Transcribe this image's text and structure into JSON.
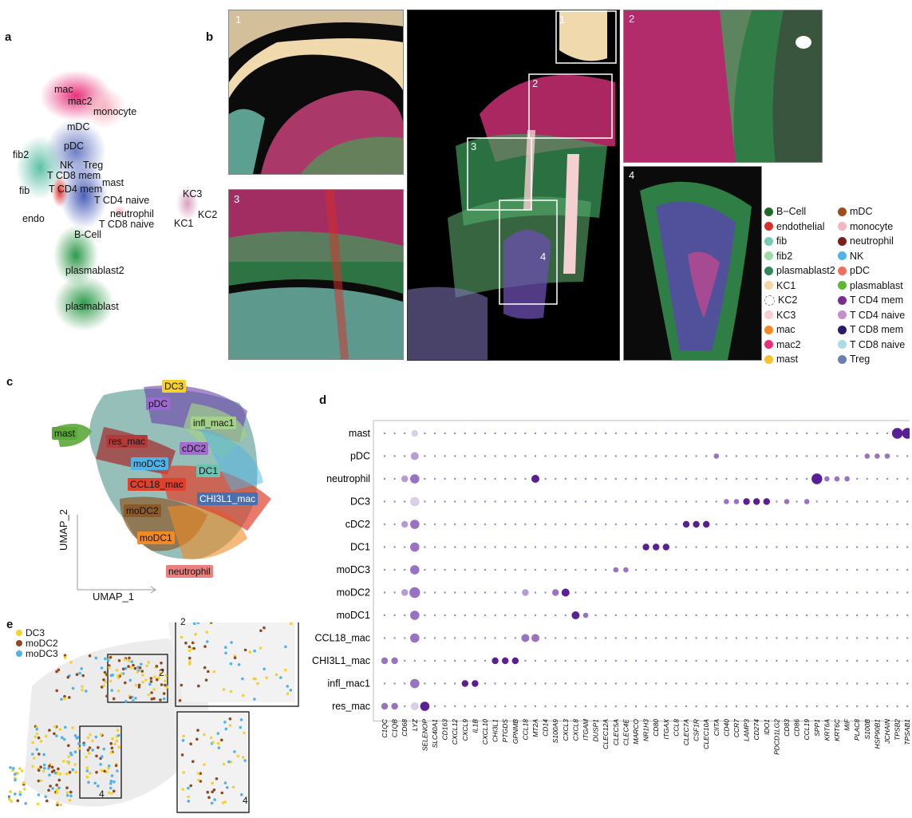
{
  "panels": {
    "a": {
      "label": "a",
      "cluster_labels": [
        "mac",
        "mac2",
        "monocyte",
        "mDC",
        "pDC",
        "fib2",
        "NK",
        "Treg",
        "T CD8 mem",
        "mast",
        "fib",
        "T CD4 mem",
        "T CD4 naive",
        "endo",
        "neutrophil",
        "T CD8 naive",
        "B-Cell",
        "plasmablast2",
        "plasmablast",
        "KC3",
        "KC2",
        "KC1"
      ]
    },
    "b": {
      "label": "b",
      "tile_numbers": [
        "1",
        "2",
        "3",
        "4"
      ],
      "overview_box_numbers": [
        "1",
        "2",
        "3",
        "4"
      ],
      "legend": [
        {
          "name": "B−Cell",
          "color": "#1f6b2a"
        },
        {
          "name": "endothelial",
          "color": "#d73027"
        },
        {
          "name": "fib",
          "color": "#79c9b8"
        },
        {
          "name": "fib2",
          "color": "#9fd9a8"
        },
        {
          "name": "plasmablast2",
          "color": "#2e8b57"
        },
        {
          "name": "KC1",
          "color": "#f5d7a3"
        },
        {
          "name": "KC2",
          "color": "#ffffff"
        },
        {
          "name": "KC3",
          "color": "#f7cdd0"
        },
        {
          "name": "mac",
          "color": "#f08a24"
        },
        {
          "name": "mac2",
          "color": "#e8307a"
        },
        {
          "name": "mast",
          "color": "#f6c330"
        },
        {
          "name": "mDC",
          "color": "#9c4e1f"
        },
        {
          "name": "monocyte",
          "color": "#f4b6c2"
        },
        {
          "name": "neutrophil",
          "color": "#7a1f1f"
        },
        {
          "name": "NK",
          "color": "#4fb3e8"
        },
        {
          "name": "pDC",
          "color": "#f26d5b"
        },
        {
          "name": "plasmablast",
          "color": "#5cb833"
        },
        {
          "name": "T CD4 mem",
          "color": "#7b2c8c"
        },
        {
          "name": "T CD4 naive",
          "color": "#c58fc9"
        },
        {
          "name": "T CD8 mem",
          "color": "#2b1a6e"
        },
        {
          "name": "T CD8 naive",
          "color": "#a9dde2"
        },
        {
          "name": "Treg",
          "color": "#6a7fb8"
        }
      ]
    },
    "c": {
      "label": "c",
      "xlabel": "UMAP_1",
      "ylabel": "UMAP_2",
      "cluster_labels": [
        {
          "name": "DC3",
          "color": "#f6d12b"
        },
        {
          "name": "pDC",
          "color": "#7b3fa8"
        },
        {
          "name": "mast",
          "color": "#5ca83a"
        },
        {
          "name": "infl_mac1",
          "color": "#a4d08a"
        },
        {
          "name": "res_mac",
          "color": "#a52a2a"
        },
        {
          "name": "cDC2",
          "color": "#9b4bb5"
        },
        {
          "name": "moDC3",
          "color": "#4fb3e8"
        },
        {
          "name": "DC1",
          "color": "#69c4b4"
        },
        {
          "name": "CCL18_mac",
          "color": "#e0402c"
        },
        {
          "name": "CHI3L1_mac",
          "color": "#4a6fb0"
        },
        {
          "name": "moDC2",
          "color": "#8b5a2b"
        },
        {
          "name": "moDC1",
          "color": "#f08a24"
        },
        {
          "name": "neutrophil",
          "color": "#e98080"
        }
      ]
    },
    "d": {
      "label": "d",
      "chart_data": {
        "type": "dotplot",
        "rows": [
          "mast",
          "pDC",
          "neutrophil",
          "DC3",
          "cDC2",
          "DC1",
          "moDC3",
          "moDC2",
          "moDC1",
          "CCL18_mac",
          "CHI3L1_mac",
          "infl_mac1",
          "res_mac"
        ],
        "columns": [
          "C1QC",
          "C1QB",
          "CD68",
          "LYZ",
          "SELENOP",
          "SLC40A1",
          "CD163",
          "CXCL12",
          "CXCL9",
          "IL1B",
          "CXCL10",
          "CHI3L1",
          "PTGDS",
          "GPNMB",
          "CCL18",
          "MT2A",
          "CD14",
          "S100A9",
          "CXCL3",
          "CXCL8",
          "ITGAM",
          "DUSP1",
          "CLEC12A",
          "CLEC5A",
          "CLEC4E",
          "MARCO",
          "NR1H3",
          "CD80",
          "ITGAX",
          "CCL8",
          "CLEC7A",
          "CSF1R",
          "CLEC10A",
          "CIITA",
          "CD40",
          "CCR7",
          "LAMP3",
          "CD274",
          "IDO1",
          "PDCD1LG2",
          "CD83",
          "CD86",
          "CCL19",
          "SPP1",
          "KRT6A",
          "KRT6C",
          "MIF",
          "PLAC8",
          "S100B",
          "HSP90B1",
          "JCHAIN",
          "TPSB2",
          "TPSAB1"
        ],
        "highlights": [
          {
            "row": "mast",
            "col": "TPSB2",
            "size": 3,
            "shade": 3
          },
          {
            "row": "mast",
            "col": "TPSAB1",
            "size": 3,
            "shade": 3
          },
          {
            "row": "mast",
            "col": "LYZ",
            "size": 1.5,
            "shade": 0
          },
          {
            "row": "pDC",
            "col": "LYZ",
            "size": 2,
            "shade": 1
          },
          {
            "row": "pDC",
            "col": "CIITA",
            "size": 1,
            "shade": 2
          },
          {
            "row": "pDC",
            "col": "S100B",
            "size": 1,
            "shade": 2
          },
          {
            "row": "pDC",
            "col": "HSP90B1",
            "size": 1,
            "shade": 2
          },
          {
            "row": "pDC",
            "col": "JCHAIN",
            "size": 1,
            "shade": 2
          },
          {
            "row": "neutrophil",
            "col": "CD68",
            "size": 1.5,
            "shade": 1
          },
          {
            "row": "neutrophil",
            "col": "LYZ",
            "size": 2.5,
            "shade": 2
          },
          {
            "row": "neutrophil",
            "col": "MT2A",
            "size": 2,
            "shade": 3
          },
          {
            "row": "neutrophil",
            "col": "SPP1",
            "size": 3,
            "shade": 3
          },
          {
            "row": "neutrophil",
            "col": "KRT6A",
            "size": 1,
            "shade": 2
          },
          {
            "row": "neutrophil",
            "col": "KRT6C",
            "size": 1,
            "shade": 2
          },
          {
            "row": "neutrophil",
            "col": "MIF",
            "size": 1,
            "shade": 2
          },
          {
            "row": "DC3",
            "col": "LYZ",
            "size": 2.5,
            "shade": 0
          },
          {
            "row": "DC3",
            "col": "CD40",
            "size": 1,
            "shade": 2
          },
          {
            "row": "DC3",
            "col": "CCR7",
            "size": 1,
            "shade": 2
          },
          {
            "row": "DC3",
            "col": "LAMP3",
            "size": 1.5,
            "shade": 3
          },
          {
            "row": "DC3",
            "col": "CD274",
            "size": 1.5,
            "shade": 3
          },
          {
            "row": "DC3",
            "col": "IDO1",
            "size": 1.5,
            "shade": 3
          },
          {
            "row": "DC3",
            "col": "CD83",
            "size": 1,
            "shade": 2
          },
          {
            "row": "DC3",
            "col": "CCL19",
            "size": 1,
            "shade": 2
          },
          {
            "row": "cDC2",
            "col": "CD68",
            "size": 1.5,
            "shade": 1
          },
          {
            "row": "cDC2",
            "col": "LYZ",
            "size": 2.5,
            "shade": 2
          },
          {
            "row": "cDC2",
            "col": "CLEC10A",
            "size": 1.5,
            "shade": 3
          },
          {
            "row": "cDC2",
            "col": "CSF1R",
            "size": 1.5,
            "shade": 3
          },
          {
            "row": "cDC2",
            "col": "CLEC7A",
            "size": 1.5,
            "shade": 3
          },
          {
            "row": "DC1",
            "col": "LYZ",
            "size": 2.5,
            "shade": 2
          },
          {
            "row": "DC1",
            "col": "NR1H3",
            "size": 1.5,
            "shade": 3
          },
          {
            "row": "DC1",
            "col": "CD80",
            "size": 1.5,
            "shade": 3
          },
          {
            "row": "DC1",
            "col": "ITGAX",
            "size": 1.5,
            "shade": 3
          },
          {
            "row": "moDC3",
            "col": "LYZ",
            "size": 2.5,
            "shade": 2
          },
          {
            "row": "moDC3",
            "col": "CLEC5A",
            "size": 1,
            "shade": 2
          },
          {
            "row": "moDC3",
            "col": "CLEC4E",
            "size": 1,
            "shade": 2
          },
          {
            "row": "moDC2",
            "col": "CD68",
            "size": 1.5,
            "shade": 1
          },
          {
            "row": "moDC2",
            "col": "LYZ",
            "size": 3,
            "shade": 2
          },
          {
            "row": "moDC2",
            "col": "CCL18",
            "size": 1.5,
            "shade": 1
          },
          {
            "row": "moDC2",
            "col": "S100A9",
            "size": 1.5,
            "shade": 2
          },
          {
            "row": "moDC2",
            "col": "CXCL3",
            "size": 2,
            "shade": 3
          },
          {
            "row": "moDC1",
            "col": "LYZ",
            "size": 2.5,
            "shade": 2
          },
          {
            "row": "moDC1",
            "col": "CXCL8",
            "size": 2,
            "shade": 3
          },
          {
            "row": "moDC1",
            "col": "ITGAM",
            "size": 1,
            "shade": 2
          },
          {
            "row": "CCL18_mac",
            "col": "LYZ",
            "size": 2.5,
            "shade": 2
          },
          {
            "row": "CCL18_mac",
            "col": "CCL18",
            "size": 2,
            "shade": 2
          },
          {
            "row": "CCL18_mac",
            "col": "MT2A",
            "size": 2,
            "shade": 2
          },
          {
            "row": "CHI3L1_mac",
            "col": "C1QC",
            "size": 1.5,
            "shade": 2
          },
          {
            "row": "CHI3L1_mac",
            "col": "C1QB",
            "size": 1.5,
            "shade": 2
          },
          {
            "row": "CHI3L1_mac",
            "col": "CHI3L1",
            "size": 1.5,
            "shade": 3
          },
          {
            "row": "CHI3L1_mac",
            "col": "PTGDS",
            "size": 1.5,
            "shade": 3
          },
          {
            "row": "CHI3L1_mac",
            "col": "GPNMB",
            "size": 1.5,
            "shade": 3
          },
          {
            "row": "infl_mac1",
            "col": "LYZ",
            "size": 2.5,
            "shade": 2
          },
          {
            "row": "infl_mac1",
            "col": "CXCL9",
            "size": 1.5,
            "shade": 3
          },
          {
            "row": "infl_mac1",
            "col": "IL1B",
            "size": 1.5,
            "shade": 3
          },
          {
            "row": "res_mac",
            "col": "C1QC",
            "size": 1.5,
            "shade": 2
          },
          {
            "row": "res_mac",
            "col": "C1QB",
            "size": 1.5,
            "shade": 2
          },
          {
            "row": "res_mac",
            "col": "LYZ",
            "size": 2,
            "shade": 0
          },
          {
            "row": "res_mac",
            "col": "SELENOP",
            "size": 2.5,
            "shade": 3
          }
        ]
      }
    },
    "e": {
      "label": "e",
      "legend": [
        {
          "name": "DC3",
          "color": "#f6d12b"
        },
        {
          "name": "moDC2",
          "color": "#8b4a1f"
        },
        {
          "name": "moDC3",
          "color": "#4fb3e8"
        }
      ],
      "box_numbers": [
        "2",
        "4"
      ],
      "zoom_numbers": [
        "2",
        "4"
      ]
    }
  },
  "shade_colors": [
    "#d9cfe6",
    "#b79bd3",
    "#9a72c2",
    "#5a1f94"
  ]
}
